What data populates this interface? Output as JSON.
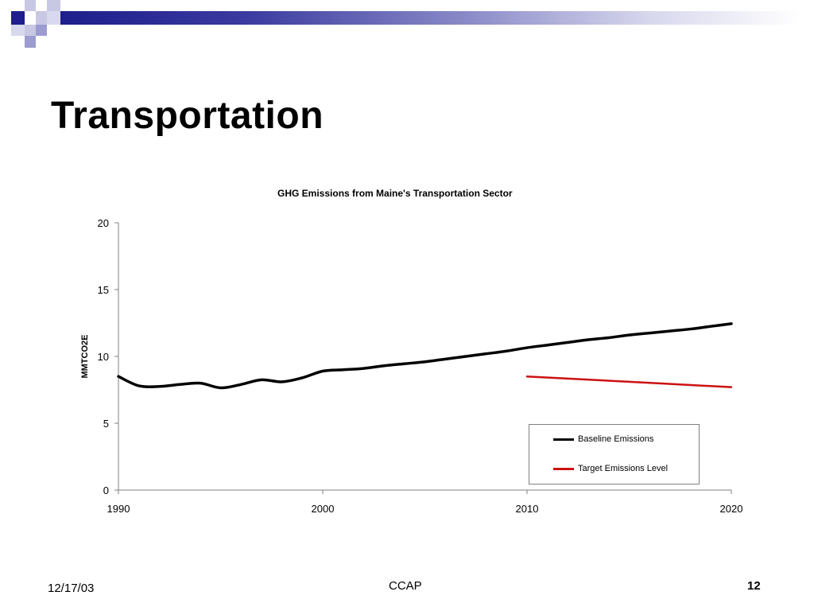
{
  "slide": {
    "title": "Transportation"
  },
  "footer": {
    "date": "12/17/03",
    "center": "CCAP",
    "page": "12"
  },
  "colors": {
    "title_bar_dark": "#1e1e8c",
    "square_dark": "#1e1e8c",
    "square_light": "#9c9cd0",
    "square_pale": "#c8c8e4",
    "baseline": "#000000",
    "target": "#cc1111"
  },
  "chart_data": {
    "type": "line",
    "title": "GHG Emissions from Maine's Transportation Sector",
    "xlabel": "",
    "ylabel": "MMTCO2E",
    "xlim": [
      1990,
      2020
    ],
    "ylim": [
      0,
      20
    ],
    "x_ticks": [
      "1990",
      "2000",
      "2010",
      "2020"
    ],
    "y_ticks": [
      "0",
      "5",
      "10",
      "15",
      "20"
    ],
    "grid": false,
    "legend_position": "bottom-right",
    "series": [
      {
        "name": "Baseline Emissions",
        "color": "#000000",
        "x": [
          1990,
          1991,
          1992,
          1993,
          1994,
          1995,
          1996,
          1997,
          1998,
          1999,
          2000,
          2001,
          2002,
          2003,
          2004,
          2005,
          2006,
          2007,
          2008,
          2009,
          2010,
          2011,
          2012,
          2013,
          2014,
          2015,
          2016,
          2017,
          2018,
          2019,
          2020
        ],
        "y": [
          8.5,
          7.8,
          7.75,
          7.9,
          8.0,
          7.65,
          7.9,
          8.25,
          8.1,
          8.4,
          8.9,
          9.0,
          9.1,
          9.3,
          9.45,
          9.6,
          9.8,
          10.0,
          10.2,
          10.4,
          10.65,
          10.85,
          11.05,
          11.25,
          11.4,
          11.6,
          11.75,
          11.9,
          12.05,
          12.25,
          12.45
        ]
      },
      {
        "name": "Target Emissions Level",
        "color": "#cc1111",
        "x": [
          2010,
          2015,
          2020
        ],
        "y": [
          8.5,
          8.1,
          7.7
        ]
      }
    ]
  }
}
